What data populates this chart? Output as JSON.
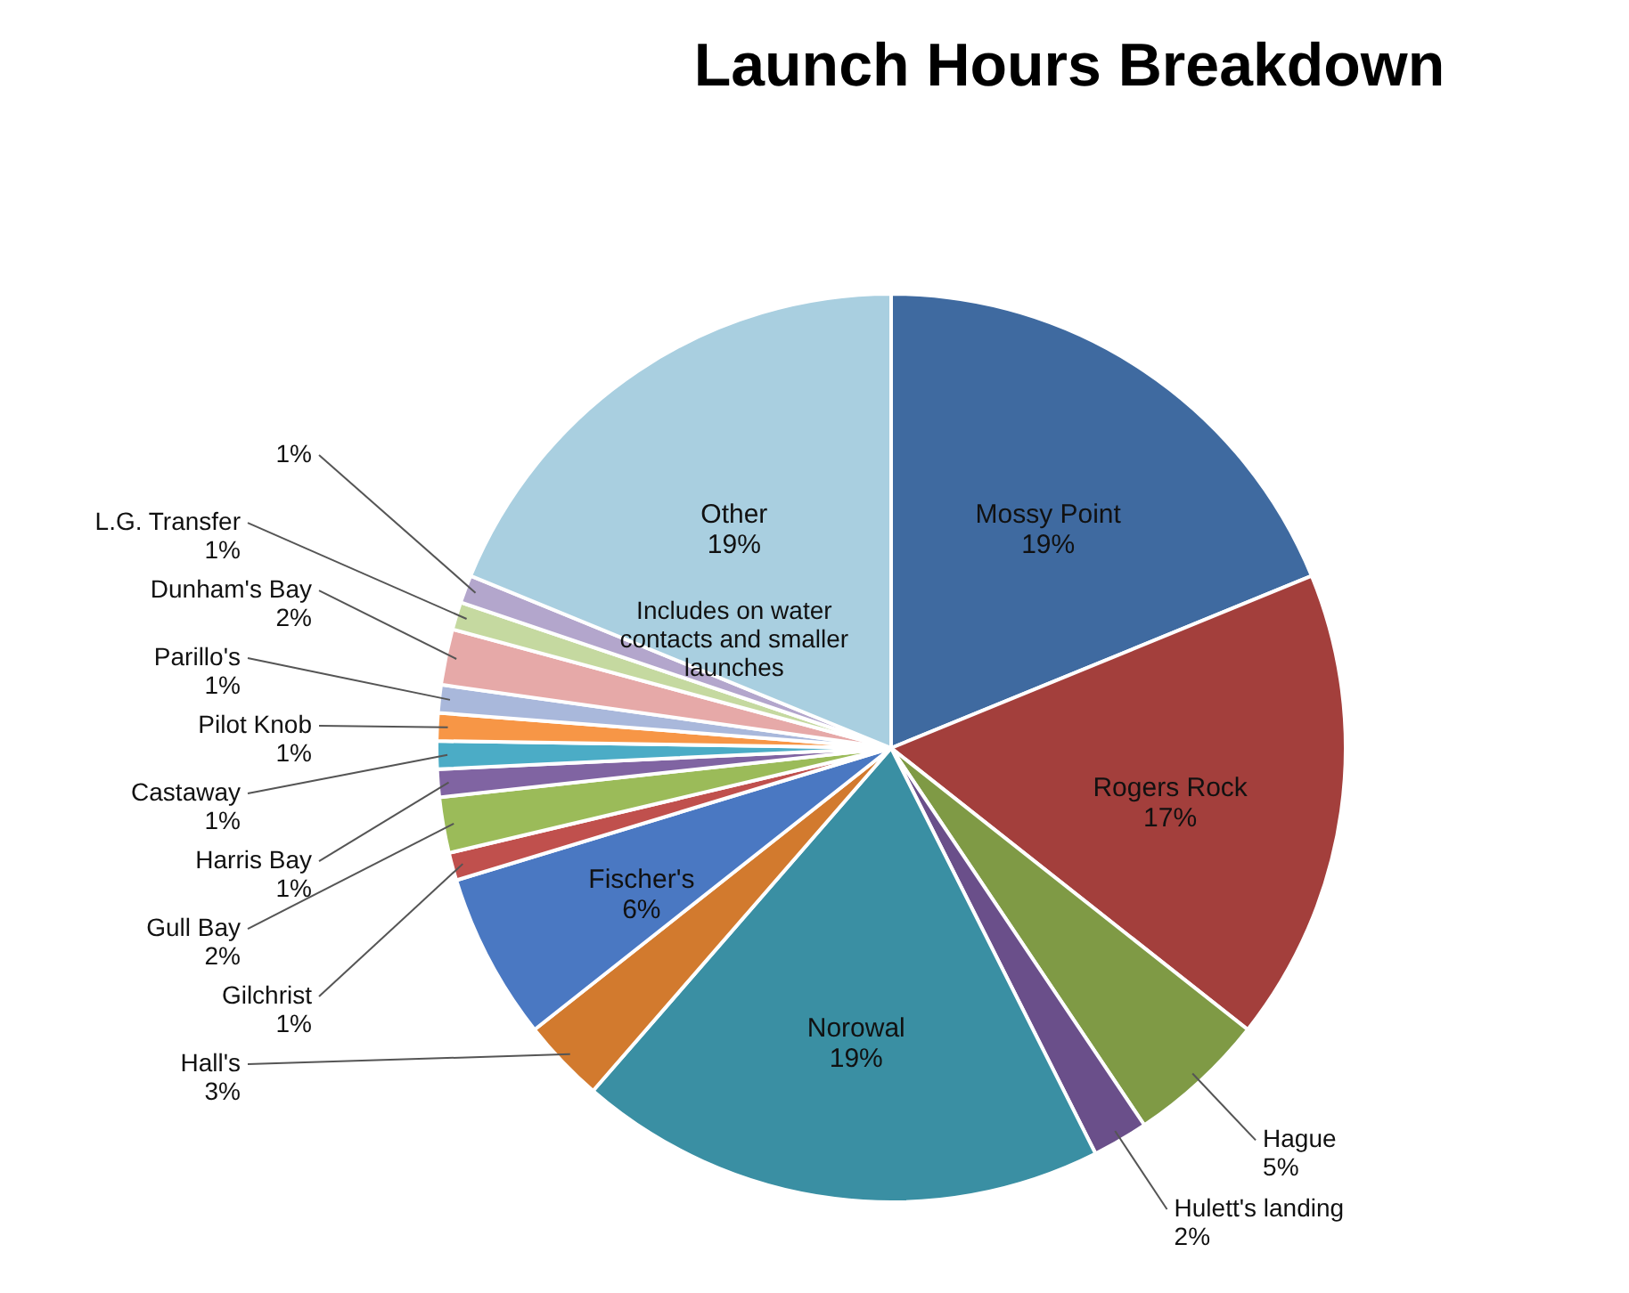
{
  "chart_data": {
    "type": "pie",
    "title": "Launch Hours Breakdown",
    "categories": [
      "Mossy Point",
      "Rogers Rock",
      "Hague",
      "Hulett's landing",
      "Norowal",
      "Hall's",
      "Fischer's",
      "Gilchrist",
      "Gull Bay",
      "Harris Bay",
      "Castaway",
      "Pilot Knob",
      "Parillo's",
      "Dunham's Bay",
      "L.G. Transfer",
      null,
      "Other"
    ],
    "values": [
      19,
      17,
      5,
      2,
      19,
      3,
      6,
      1,
      2,
      1,
      1,
      1,
      1,
      2,
      1,
      1,
      19
    ],
    "value_labels": [
      "19%",
      "17%",
      "5%",
      "2%",
      "19%",
      "3%",
      "6%",
      "1%",
      "2%",
      "1%",
      "1%",
      "1%",
      "1%",
      "2%",
      "1%",
      "1%",
      "19%"
    ],
    "colors": [
      "#3f6aa0",
      "#a33f3c",
      "#7f9a45",
      "#6a4f8a",
      "#3a8fa3",
      "#d27a2e",
      "#4a78c2",
      "#c0504d",
      "#9bbb59",
      "#8064a2",
      "#4bacc6",
      "#f79646",
      "#a9b8db",
      "#e6a9a8",
      "#c5d9a0",
      "#b3a6cc",
      "#a9cfe0"
    ],
    "annotations": [
      "Includes on water contacts and smaller launches"
    ]
  }
}
